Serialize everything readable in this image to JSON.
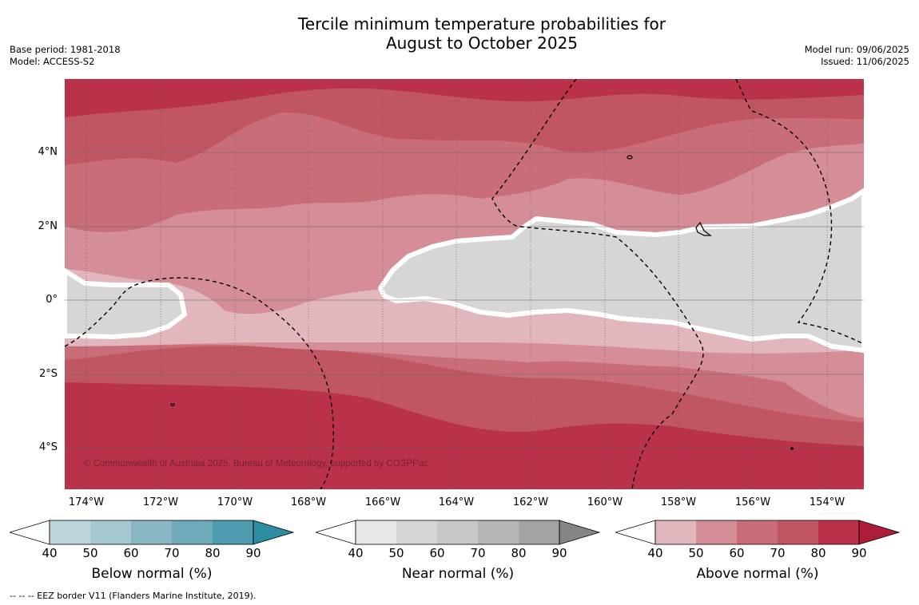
{
  "title_line1": "Tercile minimum temperature probabilities for",
  "title_line2": "August to October 2025",
  "base_period": "Base period: 1981-2018",
  "model": "Model: ACCESS-S2",
  "model_run": "Model run: 09/06/2025",
  "issued": "Issued: 11/06/2025",
  "copyright": "© Commonwealth of Australia 2025, Bureau of Meteorology, supported by COSPPac",
  "lat_labels": [
    "4°N",
    "2°N",
    "0°",
    "2°S",
    "4°S"
  ],
  "lon_labels": [
    "174°W",
    "172°W",
    "170°W",
    "168°W",
    "166°W",
    "164°W",
    "162°W",
    "160°W",
    "158°W",
    "156°W",
    "154°W"
  ],
  "colorbars": {
    "below": {
      "title": "Below normal (%)",
      "ticks": [
        "40",
        "50",
        "60",
        "70",
        "80",
        "90"
      ],
      "colors": [
        "#ffffff",
        "#bdd5dd",
        "#a6c8cf",
        "#89b7c3",
        "#6eaab8",
        "#4e9bae",
        "#2e8ca0"
      ]
    },
    "near": {
      "title": "Near normal (%)",
      "ticks": [
        "40",
        "50",
        "60",
        "70",
        "80",
        "90"
      ],
      "colors": [
        "#ffffff",
        "#e6e6e6",
        "#d6d6d6",
        "#c7c7c7",
        "#b6b6b6",
        "#a3a3a3",
        "#858585"
      ]
    },
    "above": {
      "title": "Above normal (%)",
      "ticks": [
        "40",
        "50",
        "60",
        "70",
        "80",
        "90"
      ],
      "colors": [
        "#ffffff",
        "#e2b6bd",
        "#d58d97",
        "#c96e79",
        "#c15663",
        "#b9324a",
        "#ae1c3a"
      ]
    }
  },
  "footnote": "-- -- -- EEZ border V11 (Flanders Marine Institute, 2019)."
}
